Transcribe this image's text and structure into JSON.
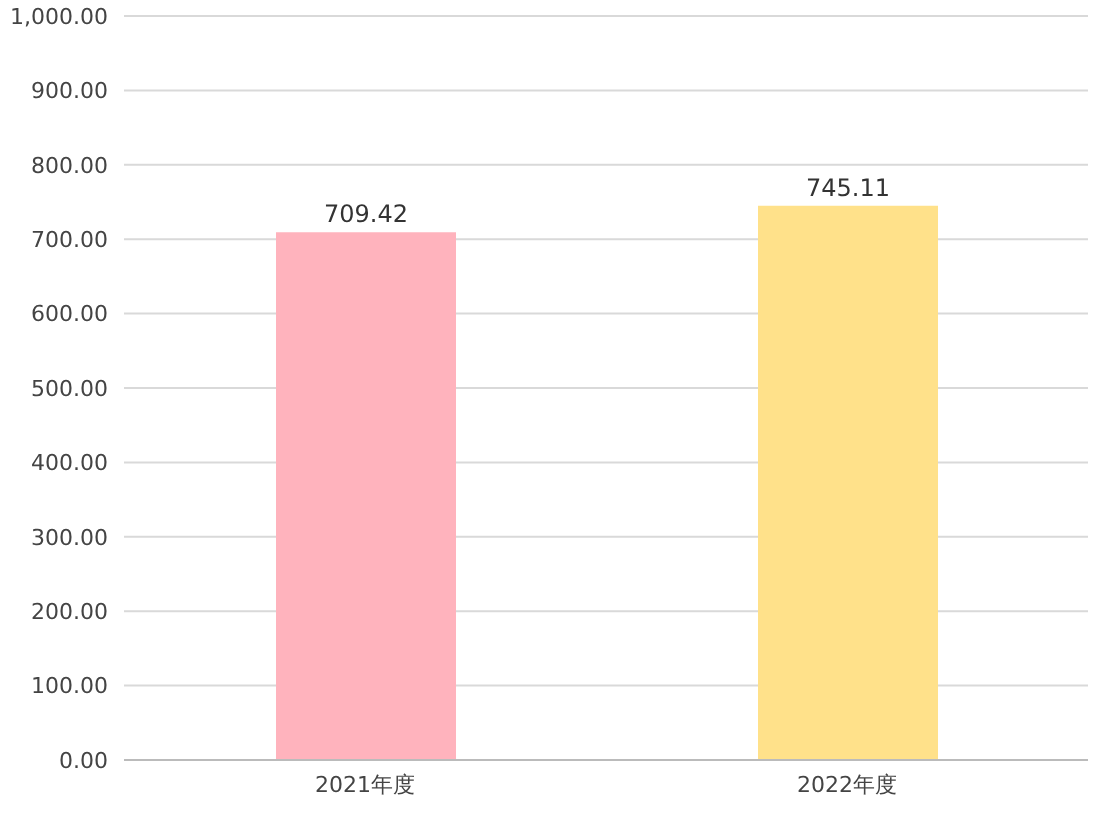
{
  "chart_data": {
    "type": "bar",
    "categories": [
      "2021年度",
      "2022年度"
    ],
    "values": [
      709.42,
      745.11
    ],
    "colors": [
      "#ffb3bd",
      "#ffe18a"
    ],
    "ylim": [
      0,
      1000
    ],
    "yticks": [
      {
        "value": 0,
        "label": "0.00"
      },
      {
        "value": 100,
        "label": "100.00"
      },
      {
        "value": 200,
        "label": "200.00"
      },
      {
        "value": 300,
        "label": "300.00"
      },
      {
        "value": 400,
        "label": "400.00"
      },
      {
        "value": 500,
        "label": "500.00"
      },
      {
        "value": 600,
        "label": "600.00"
      },
      {
        "value": 700,
        "label": "700.00"
      },
      {
        "value": 800,
        "label": "800.00"
      },
      {
        "value": 900,
        "label": "900.00"
      },
      {
        "value": 1000,
        "label": "1,000.00"
      }
    ],
    "grid": "y",
    "data_labels": true,
    "legend": false
  }
}
